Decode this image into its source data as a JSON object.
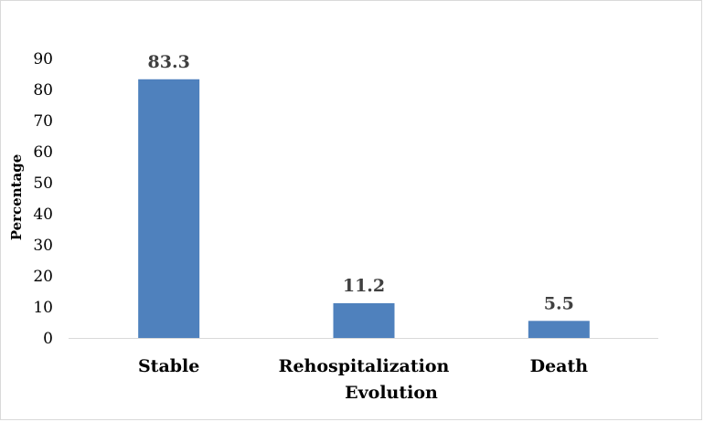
{
  "chart_data": {
    "type": "bar",
    "categories": [
      "Stable",
      "Rehospitalization",
      "Death"
    ],
    "category_line2": [
      "",
      "Evolution",
      ""
    ],
    "values": [
      83.3,
      11.2,
      5.5
    ],
    "data_labels": [
      "83.3",
      "11.2",
      "5.5"
    ],
    "ylabel": "Percentage",
    "xlabel": "",
    "ylim": [
      0,
      90
    ],
    "yticks": [
      "0",
      "10",
      "20",
      "30",
      "40",
      "50",
      "60",
      "70",
      "80",
      "90"
    ],
    "grid": false,
    "legend": "none",
    "bar_color": "#4f81bd"
  }
}
